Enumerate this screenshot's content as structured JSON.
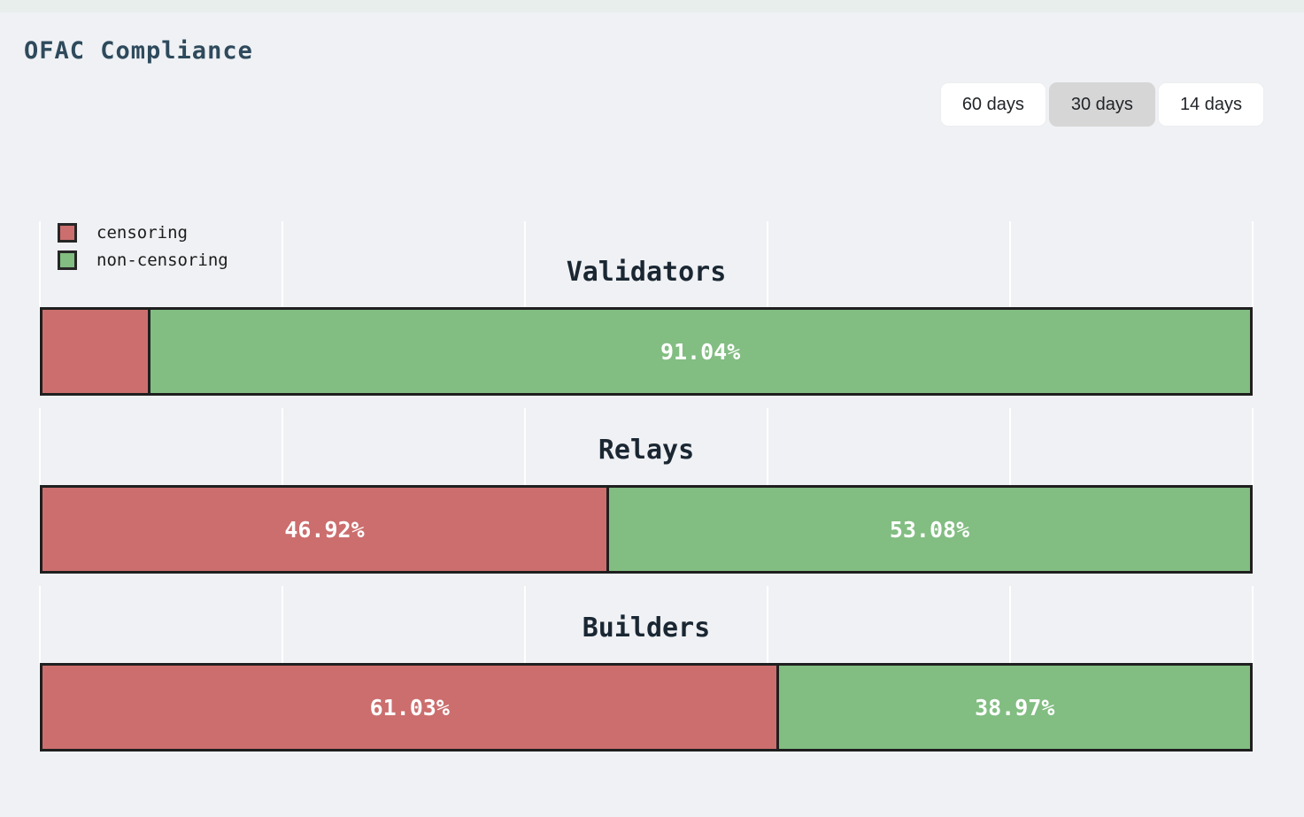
{
  "page": {
    "title": "OFAC Compliance",
    "background_color": "#eff1f4",
    "top_strip_color": "#e8eeec"
  },
  "time_filters": {
    "options": [
      {
        "label": "60 days",
        "selected": false
      },
      {
        "label": "30 days",
        "selected": true
      },
      {
        "label": "14 days",
        "selected": false
      }
    ]
  },
  "legend": {
    "items": [
      {
        "label": "censoring",
        "color": "#cc6e6e"
      },
      {
        "label": "non-censoring",
        "color": "#82bd82"
      }
    ]
  },
  "colors": {
    "censoring": "#cc6e6e",
    "non_censoring": "#82bd82",
    "bar_border": "#1f1f1f",
    "page_title_text": "#2e4a5c",
    "section_title_text": "#1a2733",
    "selected_filter_bg": "#d6d6d6"
  },
  "chart_data": [
    {
      "type": "bar",
      "orientation": "horizontal",
      "stacked": true,
      "title": "Validators",
      "categories": [
        "censoring",
        "non-censoring"
      ],
      "values": [
        8.96,
        91.04
      ],
      "labels": [
        "",
        "91.04%"
      ],
      "xlim": [
        0,
        100
      ],
      "xticks": [
        0,
        20,
        40,
        60,
        80,
        100
      ],
      "legend_position": "upper-left",
      "grid": "white-vertical-ticks"
    },
    {
      "type": "bar",
      "orientation": "horizontal",
      "stacked": true,
      "title": "Relays",
      "categories": [
        "censoring",
        "non-censoring"
      ],
      "values": [
        46.92,
        53.08
      ],
      "labels": [
        "46.92%",
        "53.08%"
      ],
      "xlim": [
        0,
        100
      ],
      "xticks": [
        0,
        20,
        40,
        60,
        80,
        100
      ],
      "grid": "white-vertical-ticks"
    },
    {
      "type": "bar",
      "orientation": "horizontal",
      "stacked": true,
      "title": "Builders",
      "categories": [
        "censoring",
        "non-censoring"
      ],
      "values": [
        61.03,
        38.97
      ],
      "labels": [
        "61.03%",
        "38.97%"
      ],
      "xlim": [
        0,
        100
      ],
      "xticks": [
        0,
        20,
        40,
        60,
        80,
        100
      ],
      "grid": "white-vertical-ticks"
    }
  ]
}
